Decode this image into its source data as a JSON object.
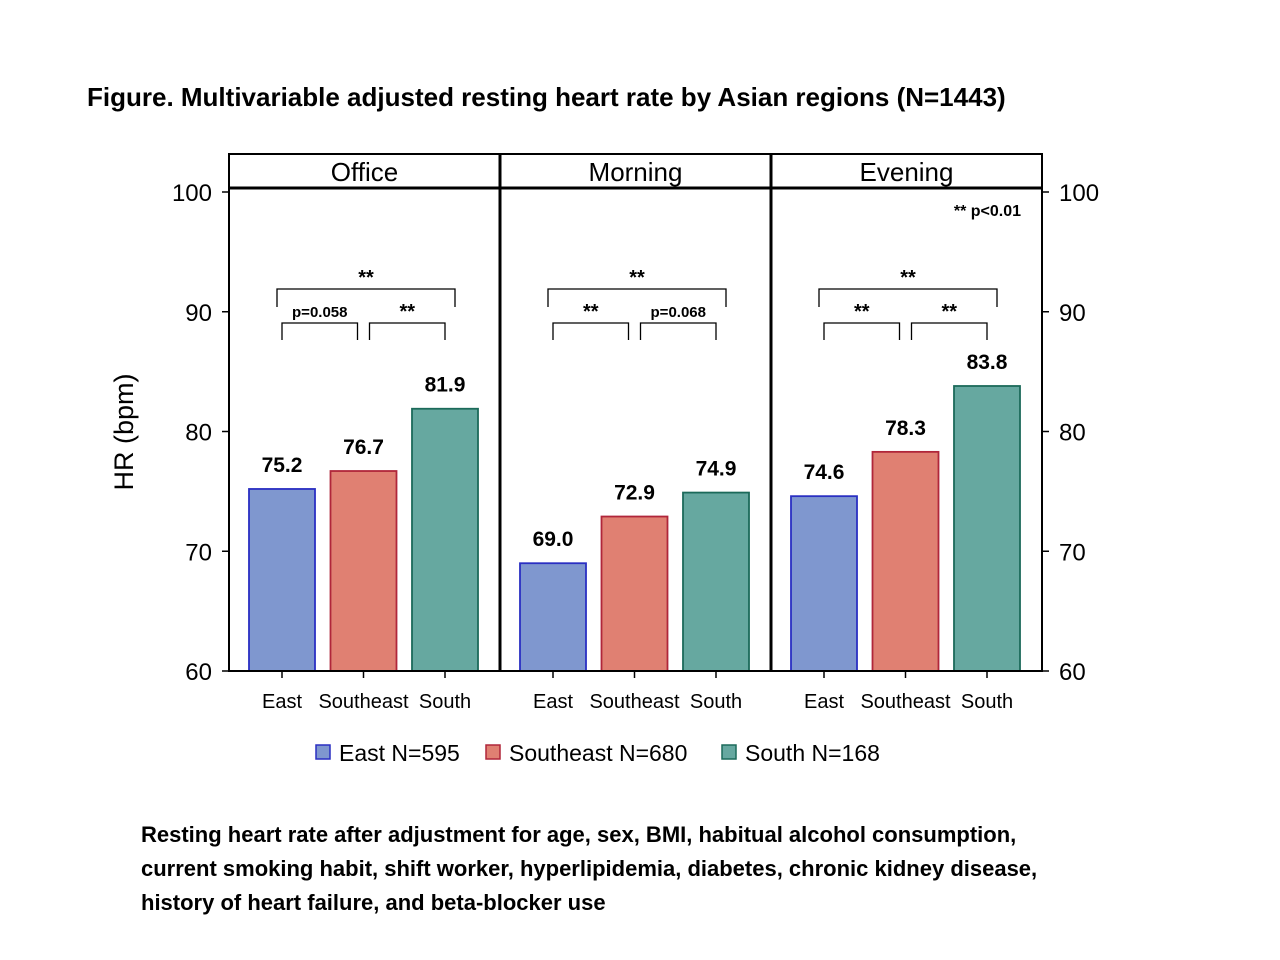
{
  "figure_title": "Figure.  Multivariable adjusted resting heart rate by Asian regions (N=1443)",
  "caption": [
    "Resting heart rate after adjustment for age, sex, BMI, habitual alcohol consumption,",
    "current smoking habit, shift worker, hyperlipidemia, diabetes, chronic kidney disease,",
    "history of heart failure, and beta-blocker use"
  ],
  "chart_data": {
    "type": "bar",
    "ylabel": "HR (bpm)",
    "ylim": [
      60,
      100
    ],
    "yticks": [
      60,
      70,
      80,
      90,
      100
    ],
    "categories": [
      "East",
      "Southeast",
      "South"
    ],
    "colors": {
      "East": {
        "fill": "#7f97cf",
        "stroke": "#2a2fc2"
      },
      "Southeast": {
        "fill": "#e08072",
        "stroke": "#b0263a"
      },
      "South": {
        "fill": "#66a8a0",
        "stroke": "#1c6a5a"
      }
    },
    "significance_note": "** p<0.01",
    "legend": [
      {
        "key": "East",
        "label": "East N=595"
      },
      {
        "key": "Southeast",
        "label": "Southeast N=680"
      },
      {
        "key": "South",
        "label": "South N=168"
      }
    ],
    "panels": [
      {
        "title": "Office",
        "values": [
          75.2,
          76.7,
          81.9
        ],
        "value_labels": [
          "75.2",
          "76.7",
          "81.9"
        ],
        "comparisons": [
          {
            "from": 0,
            "to": 1,
            "label": "p=0.058"
          },
          {
            "from": 1,
            "to": 2,
            "label": "**"
          },
          {
            "from": 0,
            "to": 2,
            "label": "**"
          }
        ]
      },
      {
        "title": "Morning",
        "values": [
          69.0,
          72.9,
          74.9
        ],
        "value_labels": [
          "69.0",
          "72.9",
          "74.9"
        ],
        "comparisons": [
          {
            "from": 0,
            "to": 1,
            "label": "**"
          },
          {
            "from": 1,
            "to": 2,
            "label": "p=0.068"
          },
          {
            "from": 0,
            "to": 2,
            "label": "**"
          }
        ]
      },
      {
        "title": "Evening",
        "values": [
          74.6,
          78.3,
          83.8
        ],
        "value_labels": [
          "74.6",
          "78.3",
          "83.8"
        ],
        "comparisons": [
          {
            "from": 0,
            "to": 1,
            "label": "**"
          },
          {
            "from": 1,
            "to": 2,
            "label": "**"
          },
          {
            "from": 0,
            "to": 2,
            "label": "**"
          }
        ]
      }
    ]
  }
}
